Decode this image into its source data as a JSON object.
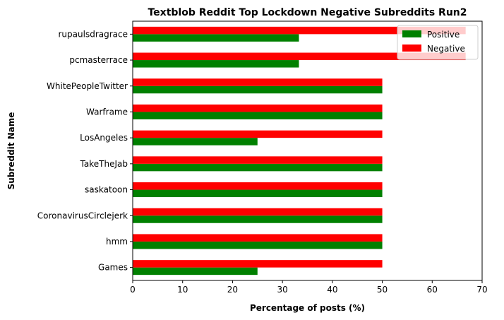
{
  "chart_data": {
    "type": "bar",
    "orientation": "horizontal",
    "title": "Textblob Reddit Top Lockdown Negative Subreddits Run2",
    "xlabel": "Percentage of posts (%)",
    "ylabel": "Subreddit Name",
    "xlim": [
      0,
      70
    ],
    "xticks": [
      "0",
      "10",
      "20",
      "30",
      "40",
      "50",
      "60",
      "70"
    ],
    "categories": [
      "Games",
      "hmm",
      "CoronavirusCirclejerk",
      "saskatoon",
      "TakeTheJab",
      "LosAngeles",
      "Warframe",
      "WhitePeopleTwitter",
      "pcmasterrace",
      "rupaulsdragrace"
    ],
    "series": [
      {
        "name": "Positive",
        "color": "#008000",
        "values": [
          25,
          50,
          50,
          50,
          50,
          25,
          50,
          50,
          33.3,
          33.3
        ]
      },
      {
        "name": "Negative",
        "color": "#ff0000",
        "values": [
          50,
          50,
          50,
          50,
          50,
          50,
          50,
          50,
          66.7,
          66.7
        ]
      }
    ],
    "grid": false,
    "legend_position": "top-right"
  }
}
